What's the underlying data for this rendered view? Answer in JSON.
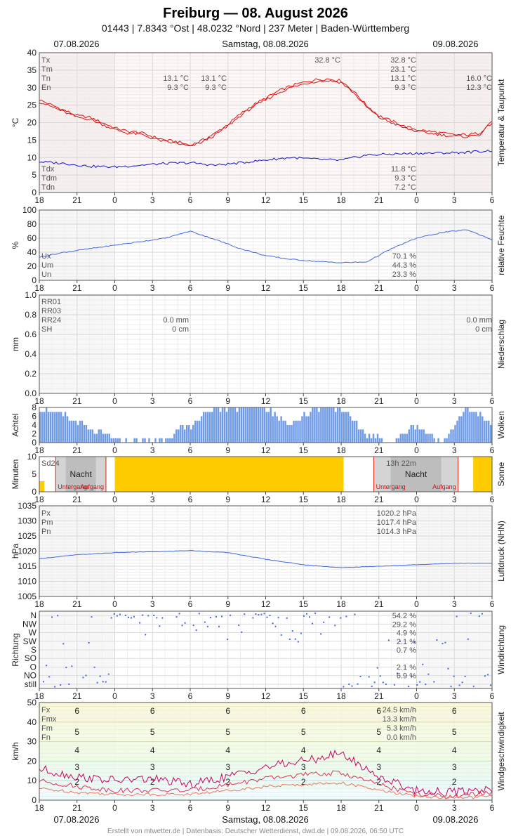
{
  "header": {
    "title": "Freiburg  —  08. August 2026",
    "subtitle": "01443  |  7.8343 °Ost  |  48.0232 °Nord  |  237 Meter  |  Baden-Württemberg"
  },
  "dates": {
    "left": "07.08.2026",
    "center": "Samstag, 08.08.2026",
    "right": "09.08.2026"
  },
  "footer": "Erstellt von mtwetter.de | Datenbasis: Deutscher Wetterdienst, dwd.de | 09.08.2026, 06:50 UTC",
  "colors": {
    "temp": "#dd1111",
    "dew": "#1111cc",
    "humidity": "#4169e1",
    "cloud": "#6f9be8",
    "sun": "#ffcc00",
    "gust": "#cc0066",
    "wind_max": "#dd3355",
    "wind_mean": "#ee7755"
  },
  "x_ticks": [
    "18",
    "21",
    "0",
    "3",
    "6",
    "9",
    "12",
    "15",
    "18",
    "21",
    "0",
    "3",
    "6"
  ],
  "panels": {
    "temperature": {
      "side_label": "Temperatur & Taupunkt",
      "ylabel": "°C",
      "yticks": [
        "0",
        "5",
        "10",
        "15",
        "20",
        "25",
        "30",
        "35",
        "40"
      ],
      "legend": [
        "Tx",
        "Tm",
        "Tn",
        "En"
      ],
      "day1_min": "13.1 °C",
      "day1_en": "9.3 °C",
      "day2_min": "13.1 °C",
      "day2_en": "9.3 °C",
      "max_note": "32.8 °C",
      "day2_stats": [
        "32.8 °C",
        "23.1 °C",
        "13.1 °C",
        "9.3 °C"
      ],
      "day3_stats": [
        "16.0 °C",
        "12.3 °C"
      ],
      "dew_legend": [
        "Tdx",
        "Tdm",
        "Tdn"
      ],
      "dew_stats": [
        "11.8 °C",
        "9.3 °C",
        "7.2 °C"
      ]
    },
    "humidity": {
      "side_label": "relative Feuchte",
      "ylabel": "%",
      "yticks": [
        "0",
        "20",
        "40",
        "60",
        "80",
        "100"
      ],
      "legend": [
        "Ux",
        "Um",
        "Un"
      ],
      "stats": [
        "70.1 %",
        "44.3 %",
        "23.3 %"
      ]
    },
    "precip": {
      "side_label": "Niederschlag",
      "ylabel": "mm",
      "yticks": [
        "0.0",
        "0.2",
        "0.4",
        "0.6",
        "0.8",
        "1.0"
      ],
      "legend": [
        "RR01",
        "RR03",
        "RR24",
        "SH"
      ],
      "day2": [
        "0.0 mm",
        "0 cm"
      ],
      "day3": [
        "0.0 mm",
        "0 cm"
      ]
    },
    "clouds": {
      "side_label": "Wolken",
      "ylabel": "Achtel",
      "yticks": [
        "0",
        "2",
        "4",
        "6",
        "8"
      ]
    },
    "sun": {
      "side_label": "Sonne",
      "ylabel": "Minuten",
      "yticks": [
        "0",
        "5",
        "10"
      ],
      "legend": "Sd24",
      "night": "Nacht",
      "sunset": "Untergang",
      "sunrise": "Aufgang",
      "duration": "13h 22m"
    },
    "pressure": {
      "side_label": "Luftdruck (NHN)",
      "ylabel": "hPa",
      "yticks": [
        "1005",
        "1010",
        "1015",
        "1020",
        "1025",
        "1030",
        "1035"
      ],
      "legend": [
        "Px",
        "Pm",
        "Pn"
      ],
      "stats": [
        "1020.2 hPa",
        "1017.4 hPa",
        "1014.3 hPa"
      ]
    },
    "wind_dir": {
      "side_label": "Windrichtung",
      "ylabel": "Richtung",
      "categories": [
        "N",
        "NW",
        "W",
        "SW",
        "S",
        "SO",
        "O",
        "NO",
        "still"
      ],
      "stats": [
        "54.2 %",
        "29.2 %",
        "4.9 %",
        "2.1 %",
        "0.7 %",
        "",
        "2.1 %",
        "6.9 %",
        ""
      ]
    },
    "wind_speed": {
      "side_label": "Windgeschwindigkeit",
      "ylabel": "km/h",
      "yticks": [
        "0",
        "10",
        "20",
        "30",
        "40",
        "50"
      ],
      "legend": [
        "Fx",
        "Fmx",
        "Fm",
        "Fn"
      ],
      "stats": [
        "24.5 km/h",
        "13.3 km/h",
        "5.3 km/h",
        "0.0 km/h"
      ],
      "beaufort": [
        "6",
        "5",
        "4",
        "3",
        "2"
      ]
    }
  },
  "chart_data": [
    {
      "type": "line",
      "name": "temperature",
      "ylim": [
        0,
        40
      ],
      "x": [
        0,
        1,
        2,
        3,
        4,
        5,
        6,
        7,
        8,
        9,
        10,
        11,
        12,
        13,
        14,
        15,
        16,
        17,
        18,
        19,
        20,
        21,
        22,
        23,
        24,
        25,
        26,
        27,
        28,
        29,
        30,
        31,
        32,
        33,
        34,
        35,
        36
      ],
      "series": [
        {
          "values": [
            26.5,
            25,
            23.5,
            22,
            21.5,
            20,
            18.5,
            17.5,
            17.2,
            16,
            15,
            14.5,
            13.5,
            15,
            17,
            19.5,
            22.5,
            25,
            27,
            29,
            30.5,
            31.5,
            32.3,
            32.5,
            32,
            29,
            25,
            22,
            20.5,
            19,
            18,
            17.5,
            17,
            16.5,
            16.5,
            17,
            20.5
          ]
        },
        {
          "values": [
            26,
            24.5,
            23,
            21.5,
            21,
            19.5,
            18,
            17,
            16.7,
            15.5,
            14.5,
            14,
            13.1,
            14.5,
            16.5,
            19,
            22,
            24.5,
            26.5,
            28.5,
            30,
            31,
            31.8,
            32,
            31.5,
            28.5,
            24.5,
            21.5,
            20,
            18.5,
            17.5,
            17,
            16.5,
            16,
            16,
            16.5,
            20
          ]
        }
      ]
    },
    {
      "type": "line",
      "name": "dewpoint",
      "ylim": [
        0,
        40
      ],
      "x": [
        0,
        2,
        4,
        6,
        8,
        10,
        12,
        14,
        16,
        18,
        20,
        22,
        24,
        26,
        28,
        30,
        32,
        34,
        36
      ],
      "values": [
        8.8,
        8.3,
        7.5,
        7.3,
        7.8,
        8.3,
        8.5,
        7.8,
        8.5,
        9.3,
        10,
        9.5,
        9.2,
        10.7,
        11,
        11.2,
        11.3,
        11.5,
        12
      ]
    },
    {
      "type": "line",
      "name": "humidity",
      "ylim": [
        0,
        100
      ],
      "x": [
        0,
        2,
        4,
        6,
        8,
        10,
        12,
        14,
        16,
        18,
        20,
        22,
        24,
        26,
        28,
        30,
        32,
        34,
        36
      ],
      "values": [
        33,
        40,
        45,
        50,
        55,
        60,
        70,
        58,
        45,
        35,
        30,
        27,
        25,
        26,
        45,
        60,
        68,
        72,
        58
      ]
    },
    {
      "type": "bar",
      "name": "clouds",
      "ylim": [
        0,
        8
      ],
      "x": [
        0,
        2,
        4,
        6,
        8,
        10,
        12,
        14,
        16,
        18,
        20,
        22,
        24,
        26,
        28,
        30,
        32,
        34,
        36
      ],
      "values": [
        8,
        6,
        3,
        1,
        0,
        1,
        4,
        8,
        8,
        8,
        4,
        8,
        8,
        2,
        0,
        4,
        0,
        8,
        4
      ]
    },
    {
      "type": "bar",
      "name": "sunshine",
      "ylim": [
        0,
        10
      ],
      "x": [
        0,
        4,
        8,
        12,
        16,
        20,
        24,
        28,
        32,
        36
      ],
      "values": [
        3,
        0,
        0,
        10,
        10,
        10,
        10,
        0,
        0,
        10
      ]
    },
    {
      "type": "line",
      "name": "pressure",
      "ylim": [
        1005,
        1035
      ],
      "x": [
        0,
        3,
        6,
        9,
        12,
        15,
        18,
        21,
        24,
        27,
        30,
        33,
        36
      ],
      "values": [
        1017.5,
        1018.8,
        1019.5,
        1019.8,
        1020.2,
        1019.5,
        1017.3,
        1015.5,
        1014.5,
        1015,
        1015.5,
        1016,
        1016
      ]
    },
    {
      "type": "scatter",
      "name": "wind_direction",
      "categories": [
        "N",
        "NW",
        "W",
        "SW",
        "S",
        "SO",
        "O",
        "NO",
        "still"
      ]
    },
    {
      "type": "line",
      "name": "wind_speed",
      "ylim": [
        0,
        50
      ],
      "x": [
        0,
        3,
        6,
        9,
        12,
        15,
        18,
        21,
        24,
        27,
        30,
        33,
        36
      ],
      "series": [
        {
          "values": [
            16,
            12,
            10,
            11,
            8,
            12,
            17,
            20,
            24,
            12,
            5,
            4,
            6
          ]
        },
        {
          "values": [
            10,
            7,
            5,
            5,
            5,
            8,
            11,
            13,
            14,
            8,
            3,
            2,
            4
          ]
        },
        {
          "values": [
            6,
            4,
            3,
            3,
            3,
            5,
            7,
            8,
            9,
            5,
            2,
            1,
            2
          ]
        }
      ]
    }
  ]
}
